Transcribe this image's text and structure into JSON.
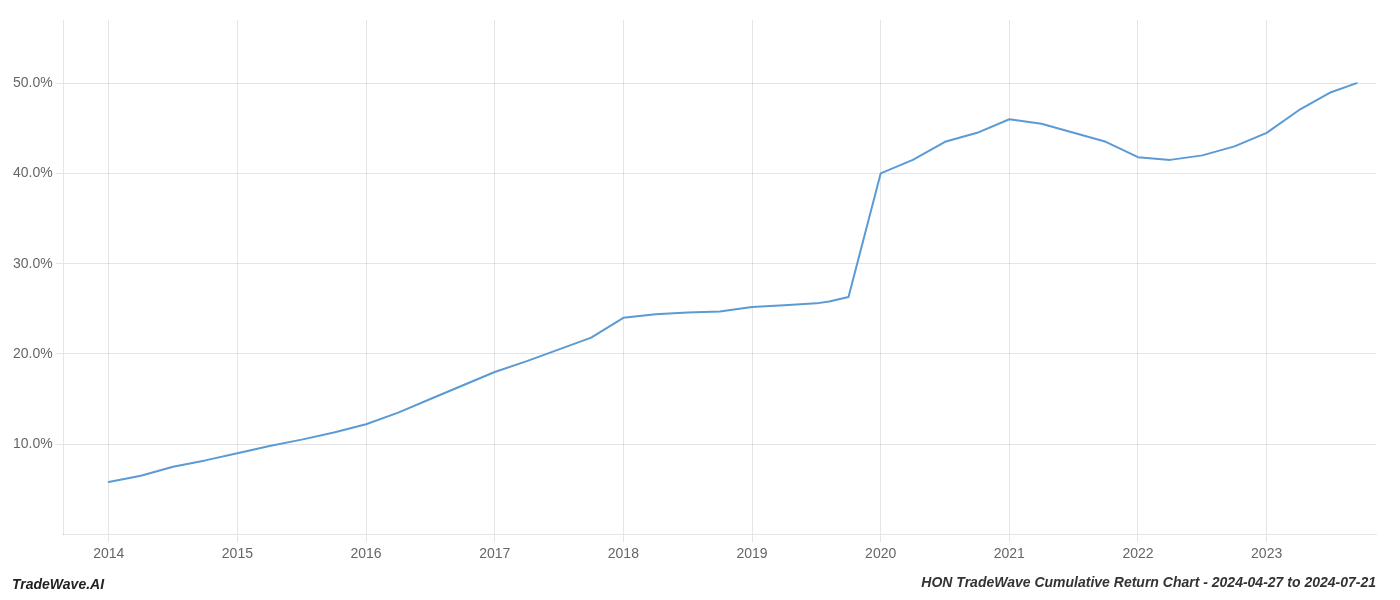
{
  "chart_data": {
    "type": "line",
    "title": "HON TradeWave Cumulative Return Chart - 2024-04-27 to 2024-07-21",
    "annotations": [
      "TradeWave.AI"
    ],
    "color": "#5b9bd5",
    "grid": true,
    "x": [
      2014.0,
      2014.25,
      2014.5,
      2014.75,
      2015.0,
      2015.25,
      2015.5,
      2015.75,
      2016.0,
      2016.25,
      2016.5,
      2016.75,
      2017.0,
      2017.25,
      2017.5,
      2017.75,
      2018.0,
      2018.25,
      2018.5,
      2018.75,
      2019.0,
      2019.25,
      2019.5,
      2019.6,
      2019.75,
      2020.0,
      2020.25,
      2020.5,
      2020.75,
      2021.0,
      2021.25,
      2021.5,
      2021.75,
      2022.0,
      2022.25,
      2022.5,
      2022.75,
      2023.0,
      2023.25,
      2023.5,
      2023.7
    ],
    "values": [
      5.8,
      6.5,
      7.5,
      8.2,
      9.0,
      9.8,
      10.5,
      11.3,
      12.2,
      13.5,
      15.0,
      16.5,
      18.0,
      19.2,
      20.5,
      21.8,
      24.0,
      24.4,
      24.6,
      24.7,
      25.2,
      25.4,
      25.6,
      25.8,
      26.3,
      40.0,
      41.5,
      43.5,
      44.5,
      46.0,
      45.5,
      44.5,
      43.5,
      41.8,
      41.5,
      42.0,
      43.0,
      44.5,
      47.0,
      49.0,
      50.0
    ],
    "xlim": [
      2013.65,
      2023.85
    ],
    "ylim": [
      0,
      57
    ],
    "xticks": [
      2014,
      2015,
      2016,
      2017,
      2018,
      2019,
      2020,
      2021,
      2022,
      2023
    ],
    "yticks": [
      {
        "value": 10.0,
        "label": "10.0%"
      },
      {
        "value": 20.0,
        "label": "20.0%"
      },
      {
        "value": 30.0,
        "label": "30.0%"
      },
      {
        "value": 40.0,
        "label": "40.0%"
      },
      {
        "value": 50.0,
        "label": "50.0%"
      }
    ]
  }
}
